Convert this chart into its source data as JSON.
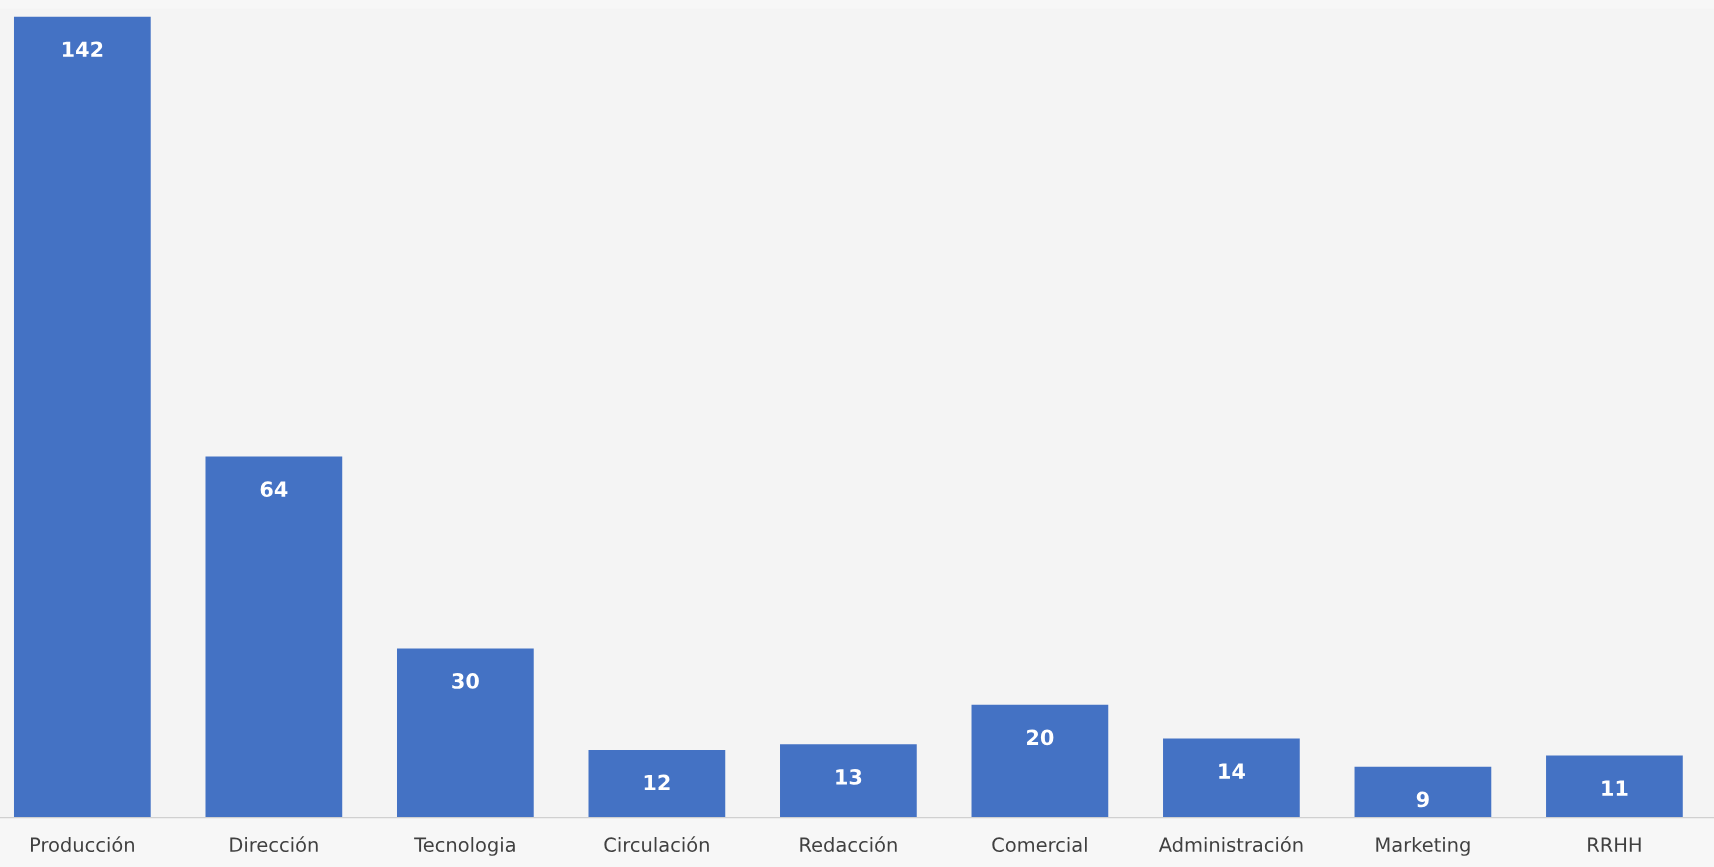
{
  "chart_data": {
    "type": "bar",
    "categories": [
      "Producción",
      "Dirección",
      "Tecnologia",
      "Circulación",
      "Redacción",
      "Comercial",
      "Administración",
      "Marketing",
      "RRHH"
    ],
    "values": [
      142,
      64,
      30,
      12,
      13,
      20,
      14,
      9,
      11
    ],
    "color": "#4472c4",
    "data_labels": true,
    "grid": false,
    "legend": false
  }
}
